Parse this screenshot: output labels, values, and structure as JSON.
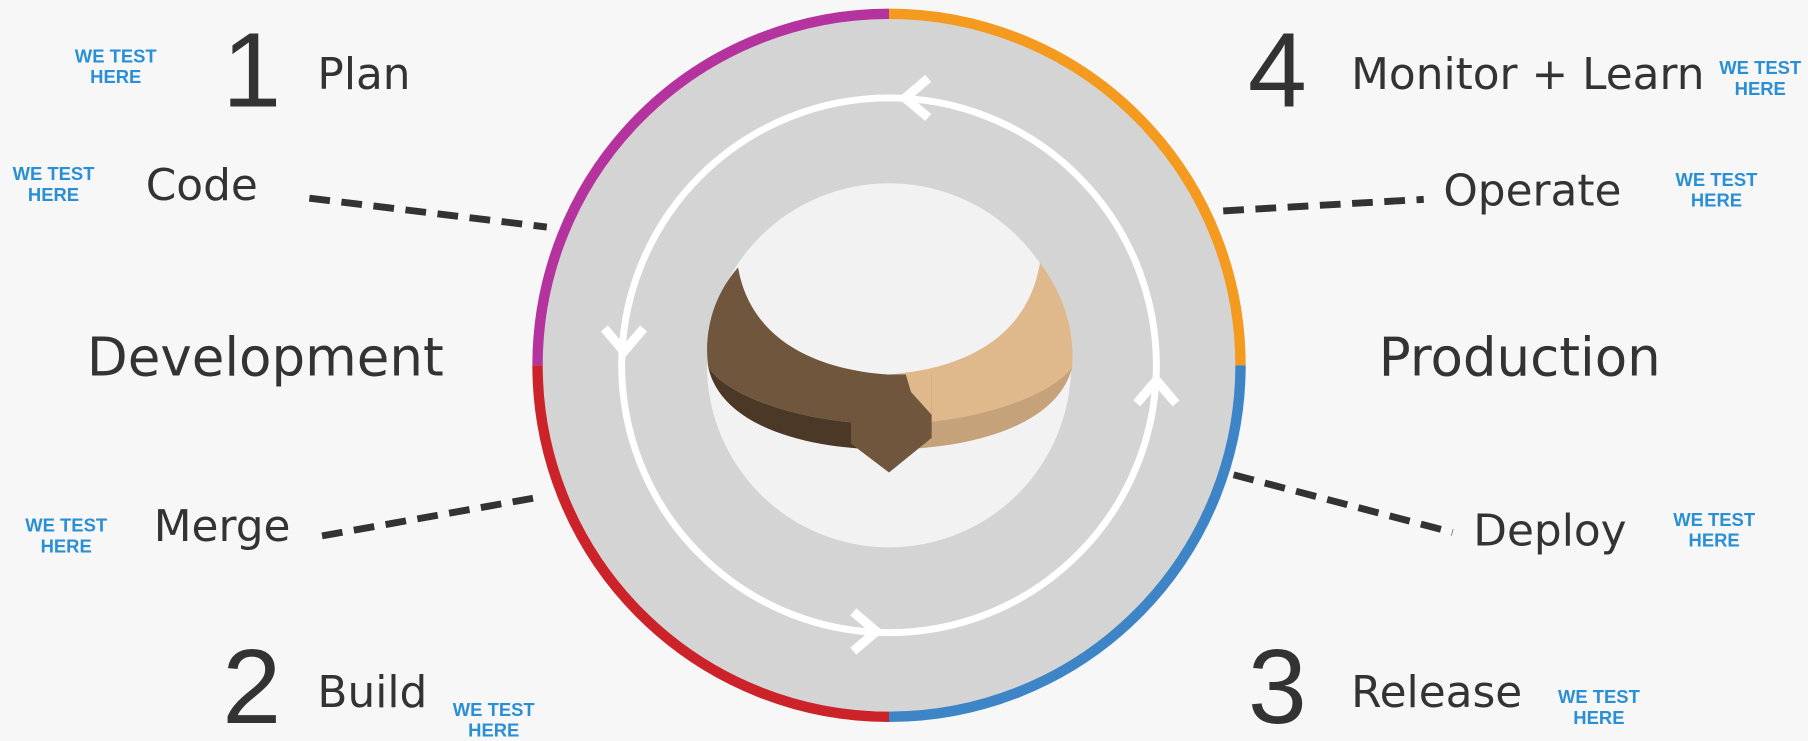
{
  "phases": [
    {
      "number": "1",
      "label": "Plan"
    },
    {
      "number": "2",
      "label": "Build"
    },
    {
      "number": "3",
      "label": "Release"
    },
    {
      "number": "4",
      "label": "Monitor + Learn"
    }
  ],
  "steps": [
    "Code",
    "Merge",
    "Deploy",
    "Operate"
  ],
  "sides": [
    "Development",
    "Production"
  ],
  "badge": [
    "WE TEST",
    "HERE"
  ]
}
